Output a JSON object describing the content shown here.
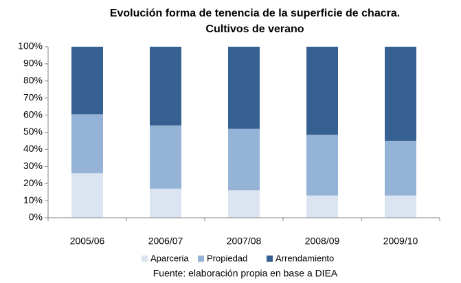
{
  "chart_data": {
    "type": "stacked_bar",
    "title": [
      "Evolución forma de tenencia de la superficie de chacra.",
      "Cultivos de verano"
    ],
    "categories": [
      "2005/06",
      "2006/07",
      "2007/08",
      "2008/09",
      "2009/10"
    ],
    "series": [
      {
        "name": "Aparceria",
        "color": "#dbe5f1",
        "values": [
          26,
          17,
          16,
          13,
          13
        ]
      },
      {
        "name": "Propiedad",
        "color": "#95b3d7",
        "values": [
          34.5,
          37,
          36,
          35.5,
          32
        ]
      },
      {
        "name": "Arrendamiento",
        "color": "#376092",
        "values": [
          39.5,
          46,
          48,
          51.5,
          55
        ]
      }
    ],
    "ylim": [
      0,
      100
    ],
    "yticks": [
      {
        "value": 0,
        "label": "0%"
      },
      {
        "value": 10,
        "label": "10%"
      },
      {
        "value": 20,
        "label": "20%"
      },
      {
        "value": 30,
        "label": "30%"
      },
      {
        "value": 40,
        "label": "40%"
      },
      {
        "value": 50,
        "label": "50%"
      },
      {
        "value": 60,
        "label": "60%"
      },
      {
        "value": 70,
        "label": "70%"
      },
      {
        "value": 80,
        "label": "80%"
      },
      {
        "value": 90,
        "label": "90%"
      },
      {
        "value": 100,
        "label": "100%"
      }
    ],
    "grid": false,
    "legend": "bottom",
    "note": "Fuente: elaboración propia en base a DIEA"
  }
}
